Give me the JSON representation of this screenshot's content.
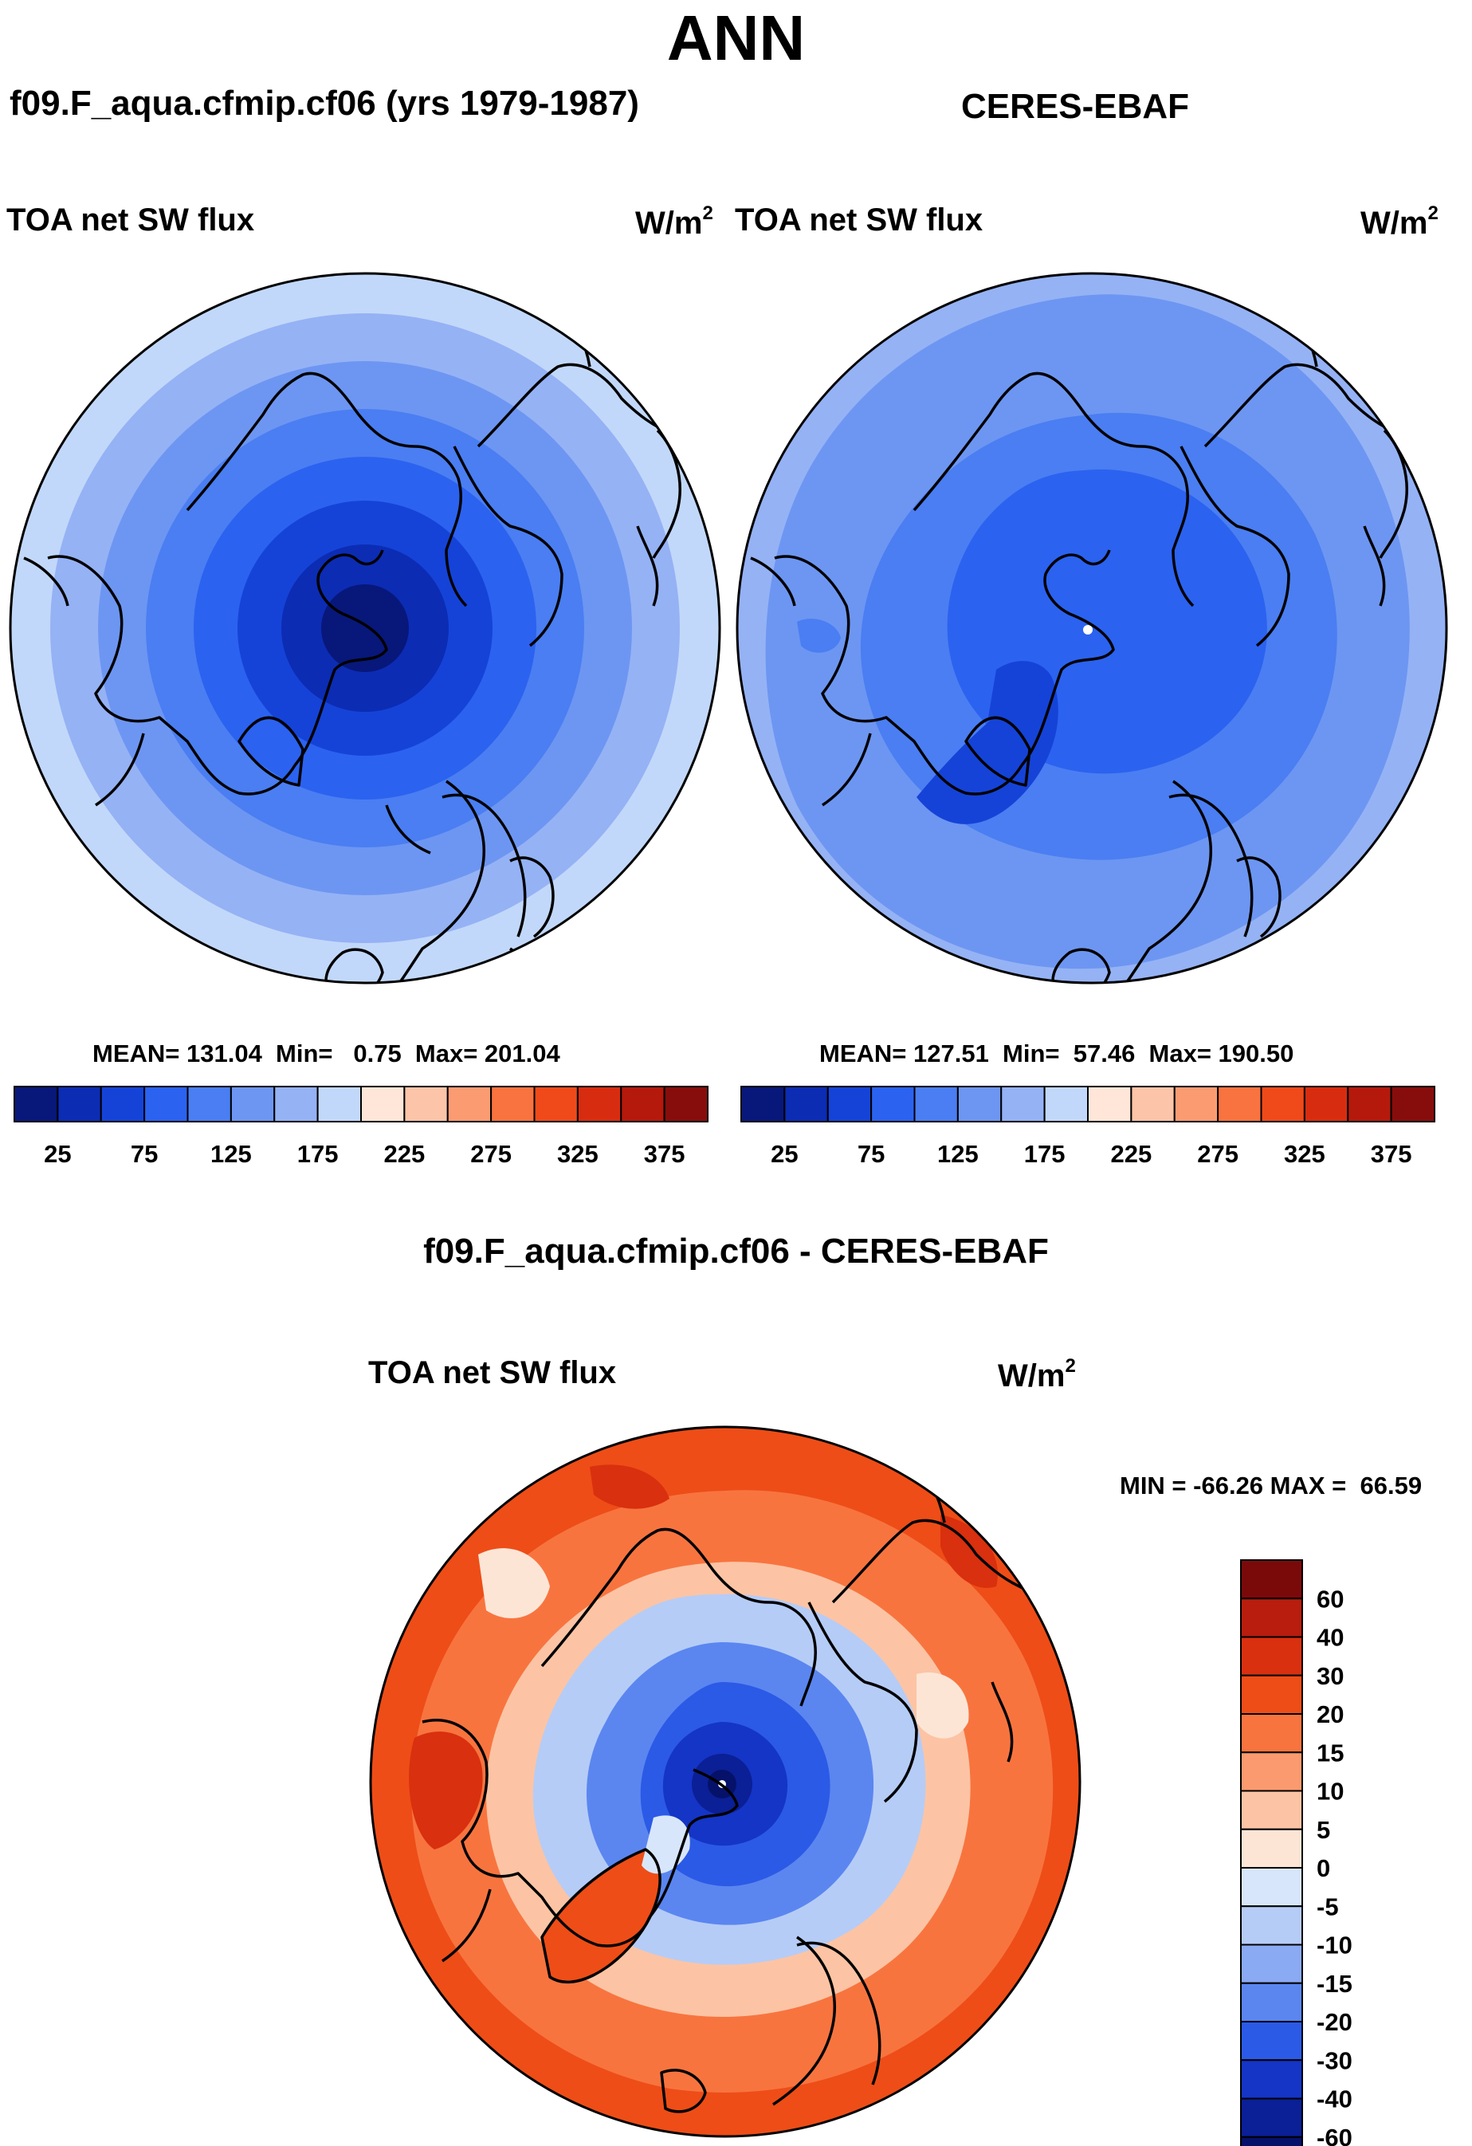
{
  "season": "ANN",
  "panels": [
    {
      "title": "f09.F_aqua.cfmip.cf06 (yrs 1979-1987)",
      "variable": "TOA net SW flux",
      "units": "W/m",
      "units_exp": "2",
      "stats_text": "MEAN= 131.04  Min=   0.75  Max= 201.04",
      "mean": 131.04,
      "min": 0.75,
      "max": 201.04
    },
    {
      "title": "CERES-EBAF",
      "variable": "TOA net SW flux",
      "units": "W/m",
      "units_exp": "2",
      "stats_text": "MEAN= 127.51  Min=  57.46  Max= 190.50",
      "mean": 127.51,
      "min": 57.46,
      "max": 190.5
    }
  ],
  "difference": {
    "title": "f09.F_aqua.cfmip.cf06 - CERES-EBAF",
    "variable": "TOA net SW flux",
    "units": "W/m",
    "units_exp": "2",
    "minmax_text": "MIN = -66.26 MAX =  66.59",
    "min": -66.26,
    "max": 66.59
  },
  "chart_data": [
    {
      "type": "heatmap",
      "projection": "north-polar-stereographic",
      "title": "f09.F_aqua.cfmip.cf06 (yrs 1979-1987)",
      "variable": "TOA net SW flux",
      "colorbar": {
        "orientation": "horizontal",
        "tick_labels": [
          "25",
          "75",
          "125",
          "175",
          "225",
          "275",
          "325",
          "375"
        ],
        "levels": [
          0,
          25,
          50,
          75,
          100,
          125,
          150,
          175,
          200,
          225,
          250,
          275,
          300,
          325,
          350,
          375,
          400
        ],
        "colors": [
          "#08177a",
          "#0c2cb4",
          "#1543d8",
          "#2b62f0",
          "#4a7ef2",
          "#6d96f2",
          "#95b2f5",
          "#c2d8fa",
          "#ffe6d8",
          "#fcc4a8",
          "#fb9b72",
          "#f8733f",
          "#f04a1a",
          "#d82c10",
          "#b5190c",
          "#870d0c"
        ]
      },
      "field_rings_level_index": [
        0,
        1,
        2,
        3,
        4,
        5,
        6,
        7
      ],
      "stats": {
        "mean": 131.04,
        "min": 0.75,
        "max": 201.04
      }
    },
    {
      "type": "heatmap",
      "projection": "north-polar-stereographic",
      "title": "CERES-EBAF",
      "variable": "TOA net SW flux",
      "colorbar": {
        "orientation": "horizontal",
        "tick_labels": [
          "25",
          "75",
          "125",
          "175",
          "225",
          "275",
          "325",
          "375"
        ],
        "levels": [
          0,
          25,
          50,
          75,
          100,
          125,
          150,
          175,
          200,
          225,
          250,
          275,
          300,
          325,
          350,
          375,
          400
        ],
        "colors": [
          "#08177a",
          "#0c2cb4",
          "#1543d8",
          "#2b62f0",
          "#4a7ef2",
          "#6d96f2",
          "#95b2f5",
          "#c2d8fa",
          "#ffe6d8",
          "#fcc4a8",
          "#fb9b72",
          "#f8733f",
          "#f04a1a",
          "#d82c10",
          "#b5190c",
          "#870d0c"
        ]
      },
      "stats": {
        "mean": 127.51,
        "min": 57.46,
        "max": 190.5
      }
    },
    {
      "type": "heatmap",
      "projection": "north-polar-stereographic",
      "title": "f09.F_aqua.cfmip.cf06 - CERES-EBAF",
      "variable": "TOA net SW flux",
      "colorbar": {
        "orientation": "vertical",
        "tick_labels": [
          "60",
          "40",
          "30",
          "20",
          "15",
          "10",
          "5",
          "0",
          "-5",
          "-10",
          "-15",
          "-20",
          "-30",
          "-40",
          "-60"
        ],
        "colors_top_to_bottom": [
          "#7a0a0a",
          "#b81d0e",
          "#d9300f",
          "#ee4d17",
          "#f8743f",
          "#fb9a6e",
          "#fcc4a4",
          "#fde5d6",
          "#d8e6fb",
          "#b5ccf7",
          "#8aaaf4",
          "#5b86f0",
          "#2b5ae6",
          "#1435c6",
          "#0b1f96",
          "#06116a"
        ]
      },
      "stats": {
        "min": -66.26,
        "max": 66.59
      }
    }
  ]
}
